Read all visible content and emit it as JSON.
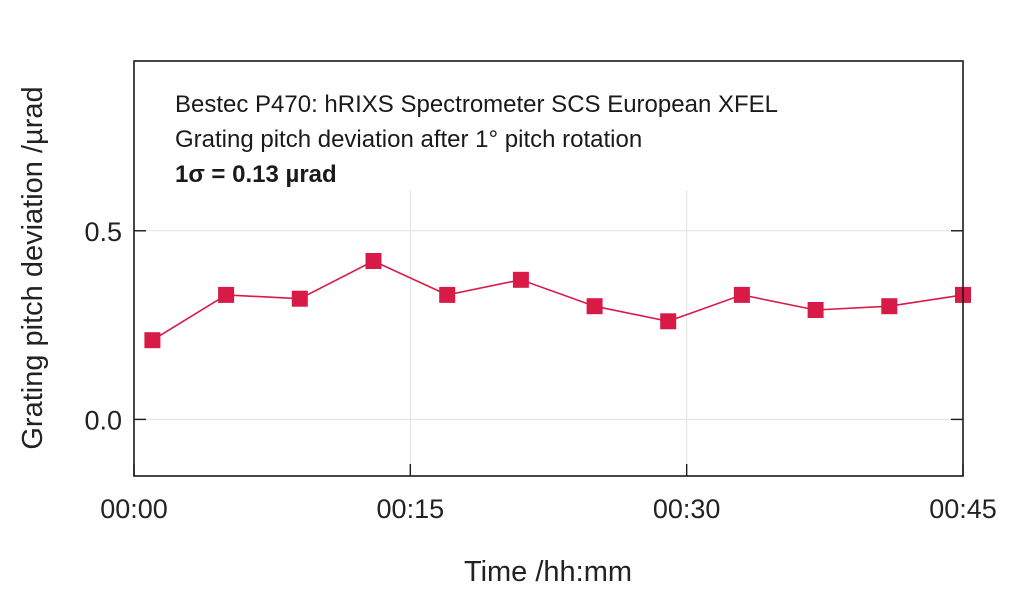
{
  "chart_data": {
    "type": "line",
    "annotations": [
      "Bestec P470: hRIXS Spectrometer SCS European XFEL",
      "Grating pitch deviation after 1° pitch rotation",
      "1σ = 0.13 µrad"
    ],
    "xlabel": "Time /hh:mm",
    "ylabel": "Grating pitch deviation /µrad",
    "x_unit": "minutes",
    "xlim": [
      0,
      45
    ],
    "ylim": [
      -0.15,
      0.95
    ],
    "x_ticks": [
      {
        "value": 0,
        "label": "00:00"
      },
      {
        "value": 15,
        "label": "00:15"
      },
      {
        "value": 30,
        "label": "00:30"
      },
      {
        "value": 45,
        "label": "00:45"
      }
    ],
    "y_ticks": [
      {
        "value": 0.0,
        "label": "0.0"
      },
      {
        "value": 0.5,
        "label": "0.5"
      }
    ],
    "grid": true,
    "series": [
      {
        "color": "#d81b46",
        "marker": "square",
        "x": [
          1,
          5,
          9,
          13,
          17,
          21,
          25,
          29,
          33,
          37,
          41,
          45
        ],
        "y": [
          0.21,
          0.33,
          0.32,
          0.42,
          0.33,
          0.37,
          0.3,
          0.26,
          0.33,
          0.29,
          0.3,
          0.33
        ]
      }
    ]
  }
}
